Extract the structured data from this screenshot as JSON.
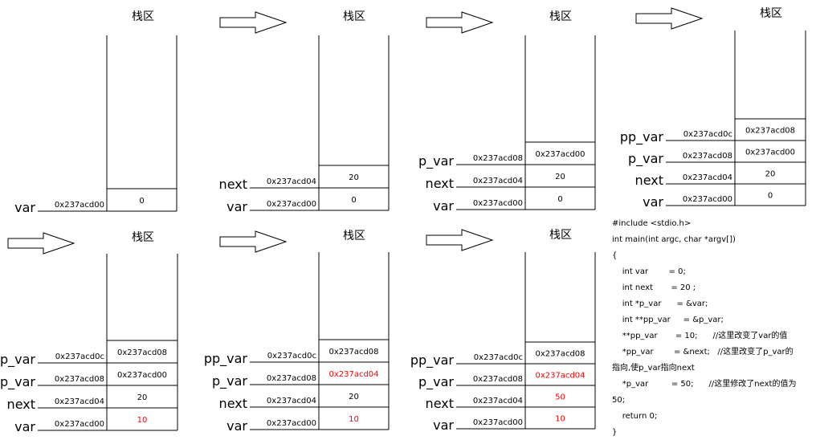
{
  "stack_title": "栈区",
  "panels": [
    {
      "vars": [
        {
          "name": "var",
          "addr": "0x237acd00",
          "value": "0",
          "highlight": false
        }
      ]
    },
    {
      "vars": [
        {
          "name": "var",
          "addr": "0x237acd00",
          "value": "0",
          "highlight": false
        },
        {
          "name": "next",
          "addr": "0x237acd04",
          "value": "20",
          "highlight": false
        }
      ]
    },
    {
      "vars": [
        {
          "name": "var",
          "addr": "0x237acd00",
          "value": "0",
          "highlight": false
        },
        {
          "name": "next",
          "addr": "0x237acd04",
          "value": "20",
          "highlight": false
        },
        {
          "name": "p_var",
          "addr": "0x237acd08",
          "value": "0x237acd00",
          "highlight": false
        }
      ]
    },
    {
      "vars": [
        {
          "name": "var",
          "addr": "0x237acd00",
          "value": "0",
          "highlight": false
        },
        {
          "name": "next",
          "addr": "0x237acd04",
          "value": "20",
          "highlight": false
        },
        {
          "name": "p_var",
          "addr": "0x237acd08",
          "value": "0x237acd00",
          "highlight": false
        },
        {
          "name": "pp_var",
          "addr": "0x237acd0c",
          "value": "0x237acd08",
          "highlight": false
        }
      ]
    },
    {
      "vars": [
        {
          "name": "var",
          "addr": "0x237acd00",
          "value": "10",
          "highlight": true
        },
        {
          "name": "next",
          "addr": "0x237acd04",
          "value": "20",
          "highlight": false
        },
        {
          "name": "p_var",
          "addr": "0x237acd08",
          "value": "0x237acd00",
          "highlight": false
        },
        {
          "name": "pp_var",
          "addr": "0x237acd0c",
          "value": "0x237acd08",
          "highlight": false
        }
      ]
    },
    {
      "vars": [
        {
          "name": "var",
          "addr": "0x237acd00",
          "value": "10",
          "highlight": true
        },
        {
          "name": "next",
          "addr": "0x237acd04",
          "value": "20",
          "highlight": false
        },
        {
          "name": "p_var",
          "addr": "0x237acd08",
          "value": "0x237acd04",
          "highlight": true
        },
        {
          "name": "pp_var",
          "addr": "0x237acd0c",
          "value": "0x237acd08",
          "highlight": false
        }
      ]
    },
    {
      "vars": [
        {
          "name": "var",
          "addr": "0x237acd00",
          "value": "10",
          "highlight": true
        },
        {
          "name": "next",
          "addr": "0x237acd04",
          "value": "50",
          "highlight": true
        },
        {
          "name": "p_var",
          "addr": "0x237acd08",
          "value": "0x237acd04",
          "highlight": true
        },
        {
          "name": "pp_var",
          "addr": "0x237acd0c",
          "value": "0x237acd08",
          "highlight": false
        }
      ]
    }
  ],
  "code_lines": [
    "#include <stdio.h>",
    "int main(int argc, char *argv[])",
    "{",
    "    int var        = 0;",
    "    int next       = 20 ;",
    "    int *p_var      = &var;",
    "    int **pp_var     = &p_var;",
    "    **pp_var       = 10;      //这里改变了var的值",
    "    *pp_var        = &next;   //这里改变了p_var的",
    "指向,使p_var指向next",
    "    *p_var         = 50;      //这里修改了next的值为",
    "50;",
    "    return 0;",
    "}"
  ],
  "colors": {
    "highlight": "#ff0000",
    "ink": "#000000"
  }
}
